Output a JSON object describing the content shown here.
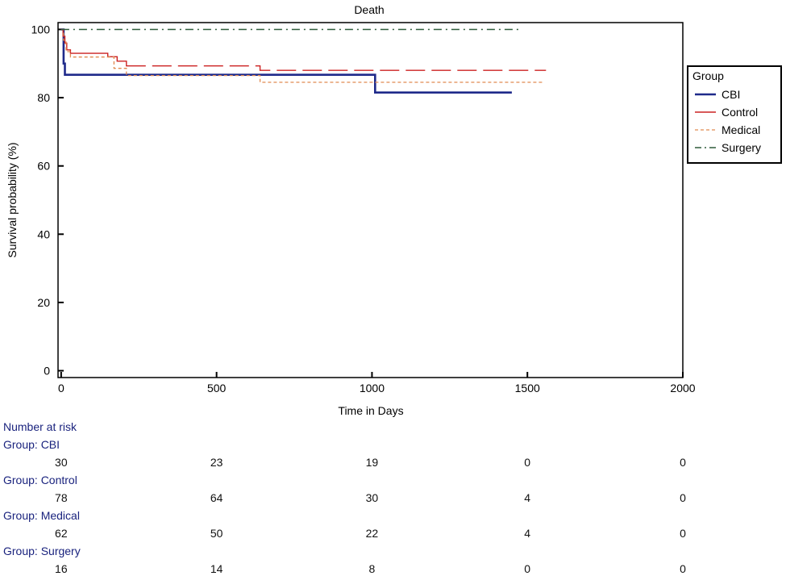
{
  "chart_data": {
    "type": "line",
    "title": "Death",
    "xlabel": "Time in Days",
    "ylabel": "Survival probability (%)",
    "xlim": [
      -10,
      2000
    ],
    "ylim": [
      -2,
      102
    ],
    "x_ticks": [
      "0",
      "500",
      "1000",
      "1500",
      "2000"
    ],
    "x_tick_values": [
      0,
      500,
      1000,
      1500,
      2000
    ],
    "y_ticks": [
      "0",
      "20",
      "40",
      "60",
      "80",
      "100"
    ],
    "y_tick_values": [
      0,
      20,
      40,
      60,
      80,
      100
    ],
    "grid": false,
    "legend": {
      "title": "Group",
      "position": "right"
    },
    "series": [
      {
        "name": "CBI",
        "color": "#1f2a8a",
        "style": "solid-thick",
        "points": [
          [
            0,
            100
          ],
          [
            8,
            100
          ],
          [
            8,
            90
          ],
          [
            12,
            90
          ],
          [
            12,
            86.7
          ],
          [
            1010,
            86.7
          ],
          [
            1010,
            81.5
          ],
          [
            1450,
            81.5
          ]
        ]
      },
      {
        "name": "Control",
        "color": "#cc2222",
        "style": "solid-thin",
        "points": [
          [
            0,
            100
          ],
          [
            6,
            100
          ],
          [
            6,
            98
          ],
          [
            12,
            98
          ],
          [
            12,
            96
          ],
          [
            18,
            96
          ],
          [
            18,
            94
          ],
          [
            30,
            94
          ],
          [
            30,
            93
          ],
          [
            150,
            93
          ],
          [
            150,
            92
          ],
          [
            180,
            92
          ],
          [
            180,
            90.7
          ],
          [
            210,
            90.7
          ],
          [
            210,
            89.3
          ],
          [
            640,
            89.3
          ],
          [
            640,
            88
          ],
          [
            1560,
            88
          ]
        ]
      },
      {
        "name": "Medical",
        "color": "#e08a50",
        "style": "dotted",
        "points": [
          [
            0,
            100
          ],
          [
            8,
            100
          ],
          [
            8,
            96.8
          ],
          [
            16,
            96.8
          ],
          [
            16,
            93.5
          ],
          [
            30,
            93.5
          ],
          [
            30,
            91.9
          ],
          [
            170,
            91.9
          ],
          [
            170,
            88.6
          ],
          [
            210,
            88.6
          ],
          [
            210,
            86.5
          ],
          [
            640,
            86.5
          ],
          [
            640,
            84.5
          ],
          [
            1550,
            84.5
          ]
        ]
      },
      {
        "name": "Surgery",
        "color": "#2e5b3a",
        "style": "dash-dot",
        "points": [
          [
            0,
            100
          ],
          [
            1480,
            100
          ]
        ]
      }
    ]
  },
  "number_at_risk": {
    "title": "Number at risk",
    "groups": [
      {
        "label": "Group: CBI",
        "values": [
          "30",
          "23",
          "19",
          "0",
          "0"
        ]
      },
      {
        "label": "Group: Control",
        "values": [
          "78",
          "64",
          "30",
          "4",
          "0"
        ]
      },
      {
        "label": "Group: Medical",
        "values": [
          "62",
          "50",
          "22",
          "4",
          "0"
        ]
      },
      {
        "label": "Group: Surgery",
        "values": [
          "16",
          "14",
          "8",
          "0",
          "0"
        ]
      }
    ]
  }
}
